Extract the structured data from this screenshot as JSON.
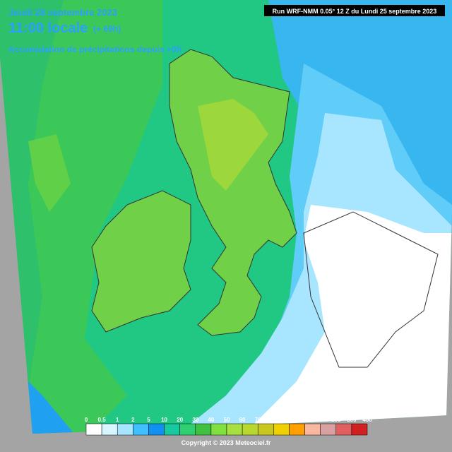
{
  "header": {
    "date": "Jeudi 28 septembre 2023",
    "time": "11:00 locale",
    "lead": "(+ 69h)",
    "product": "Accumulation de précipitations depuis +0h",
    "run": "Run WRF-NMM 0.05° 12 Z du Lundi 25 septembre 2023"
  },
  "legend": {
    "labels": [
      "0",
      "0.5",
      "1",
      "2",
      "5",
      "10",
      "20",
      "30",
      "40",
      "50",
      "60",
      "70",
      "80",
      "90",
      "100",
      "150",
      "200",
      "300",
      "400"
    ],
    "colors": [
      "#ffffff",
      "#d8f6ff",
      "#a8e6ff",
      "#40c0ff",
      "#1090f0",
      "#18c8a0",
      "#30d070",
      "#40c040",
      "#80e040",
      "#a8e040",
      "#b8d830",
      "#c8c820",
      "#f0d000",
      "#ffa000",
      "#f8b8a0",
      "#d8a0a0",
      "#e06060",
      "#d02020",
      "#b80000"
    ]
  },
  "footer": {
    "copyright": "Copyright © 2023 Meteociel.fr"
  }
}
